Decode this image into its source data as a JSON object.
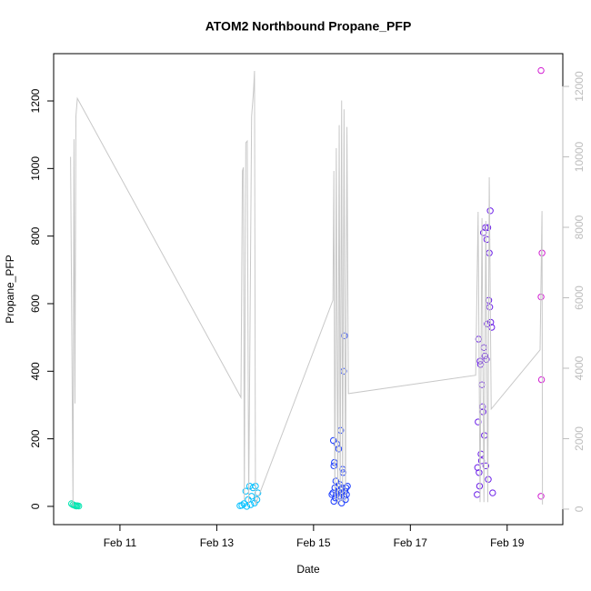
{
  "chart_data": {
    "type": "scatter",
    "title": "ATOM2 Northbound Propane_PFP",
    "x_label": "Date",
    "y_label": "Propane_PFP",
    "xlim": [
      9.63,
      20.15
    ],
    "ylim": [
      -54,
      1340
    ],
    "y2lim": [
      -440,
      12930
    ],
    "xticks": [
      {
        "value": 11,
        "label": "Feb 11"
      },
      {
        "value": 13,
        "label": "Feb 13"
      },
      {
        "value": 15,
        "label": "Feb 15"
      },
      {
        "value": 17,
        "label": "Feb 17"
      },
      {
        "value": 19,
        "label": "Feb 19"
      }
    ],
    "yticks": [
      0,
      200,
      400,
      600,
      800,
      1000,
      1200
    ],
    "y2ticks": [
      0,
      2000,
      4000,
      6000,
      8000,
      10000,
      12000
    ],
    "y2_tick_color": "#bdbdbd",
    "series": [
      {
        "x": [
          10.0,
          10.03,
          10.06,
          10.08,
          10.1,
          10.12,
          10.15,
          13.48,
          13.52,
          13.56,
          13.6,
          13.62,
          13.65,
          13.68,
          13.7,
          13.72,
          13.75,
          13.78,
          13.8,
          13.83,
          13.85,
          15.38,
          15.4,
          15.41,
          15.42,
          15.42,
          15.43,
          15.44,
          15.45,
          15.46,
          15.47,
          15.48,
          15.5,
          15.51,
          15.52,
          15.53,
          15.54,
          15.55,
          15.56,
          15.57,
          15.58,
          15.59,
          15.6,
          15.61,
          15.62,
          15.63,
          15.64,
          15.65,
          15.66,
          15.67,
          15.68,
          15.7,
          18.38,
          18.39,
          18.4,
          18.41,
          18.42,
          18.43,
          18.44,
          18.45,
          18.46,
          18.47,
          18.48,
          18.49,
          18.5,
          18.51,
          18.52,
          18.53,
          18.54,
          18.55,
          18.56,
          18.57,
          18.58,
          18.59,
          18.6,
          18.61,
          18.62,
          18.63,
          18.64,
          18.65,
          18.66,
          18.68,
          18.7,
          19.7,
          19.72,
          19.7,
          19.71,
          19.7
        ],
        "values": [
          8,
          5,
          3,
          2,
          1,
          2,
          1,
          2,
          3,
          8,
          45,
          0,
          20,
          60,
          5,
          30,
          55,
          10,
          60,
          20,
          40,
          35,
          40,
          195,
          120,
          15,
          130,
          55,
          25,
          75,
          35,
          185,
          60,
          45,
          170,
          30,
          65,
          50,
          225,
          40,
          10,
          55,
          110,
          100,
          400,
          30,
          505,
          45,
          20,
          55,
          35,
          60,
          35,
          115,
          250,
          495,
          100,
          60,
          430,
          420,
          155,
          135,
          360,
          295,
          280,
          810,
          470,
          210,
          445,
          825,
          120,
          435,
          790,
          540,
          825,
          80,
          610,
          750,
          590,
          875,
          545,
          530,
          40,
          1290,
          750,
          620,
          375,
          30
        ],
        "colors": [
          "#00e5b0",
          "#00e5b0",
          "#00e5b0",
          "#00e5b0",
          "#00e5b0",
          "#00e5b0",
          "#00e5b0",
          "#00bfff",
          "#00bfff",
          "#00bfff",
          "#00bfff",
          "#00bfff",
          "#00bfff",
          "#00bfff",
          "#00bfff",
          "#00bfff",
          "#00bfff",
          "#00bfff",
          "#00bfff",
          "#00bfff",
          "#00bfff",
          "#1a3cff",
          "#1a3cff",
          "#1a3cff",
          "#1a3cff",
          "#1a3cff",
          "#1a3cff",
          "#1a3cff",
          "#1a3cff",
          "#1a3cff",
          "#1a3cff",
          "#1a3cff",
          "#1a3cff",
          "#1a3cff",
          "#1a3cff",
          "#1a3cff",
          "#1a3cff",
          "#1a3cff",
          "#1a3cff",
          "#1a3cff",
          "#1a3cff",
          "#1a3cff",
          "#1a3cff",
          "#1a3cff",
          "#1a3cff",
          "#1a3cff",
          "#1a3cff",
          "#1a3cff",
          "#1a3cff",
          "#1a3cff",
          "#1a3cff",
          "#1a3cff",
          "#6a1de8",
          "#6a1de8",
          "#6a1de8",
          "#6a1de8",
          "#6a1de8",
          "#6a1de8",
          "#6a1de8",
          "#6a1de8",
          "#6a1de8",
          "#6a1de8",
          "#6a1de8",
          "#6a1de8",
          "#6a1de8",
          "#6a1de8",
          "#6a1de8",
          "#6a1de8",
          "#6a1de8",
          "#6a1de8",
          "#6a1de8",
          "#6a1de8",
          "#6a1de8",
          "#6a1de8",
          "#6a1de8",
          "#6a1de8",
          "#6a1de8",
          "#6a1de8",
          "#6a1de8",
          "#6a1de8",
          "#6a1de8",
          "#6a1de8",
          "#6a1de8",
          "#d21ed2",
          "#d21ed2",
          "#d21ed2",
          "#d21ed2",
          "#d21ed2"
        ]
      },
      {
        "axis": "y2",
        "color": "#c8c8c8",
        "x": [
          9.98,
          10.03,
          10.05,
          10.07,
          10.09,
          10.12,
          13.5,
          13.53,
          13.55,
          13.57,
          13.6,
          13.63,
          13.66,
          13.72,
          13.76,
          13.78,
          13.8,
          15.4,
          15.42,
          15.44,
          15.47,
          15.5,
          15.53,
          15.55,
          15.58,
          15.6,
          15.63,
          15.66,
          15.69,
          15.72,
          18.35,
          18.4,
          18.44,
          18.48,
          18.52,
          18.56,
          18.6,
          18.63,
          18.67,
          19.68,
          19.72,
          19.73
        ],
        "values": [
          10000,
          80,
          10500,
          3000,
          11150,
          11660,
          3170,
          9600,
          9700,
          260,
          10400,
          10450,
          130,
          11150,
          11870,
          12440,
          130,
          5930,
          9600,
          260,
          10250,
          130,
          10900,
          200,
          11600,
          200,
          11350,
          200,
          10850,
          3280,
          3800,
          8440,
          200,
          8260,
          200,
          8180,
          200,
          9420,
          2840,
          4520,
          8460,
          130
        ]
      }
    ]
  }
}
